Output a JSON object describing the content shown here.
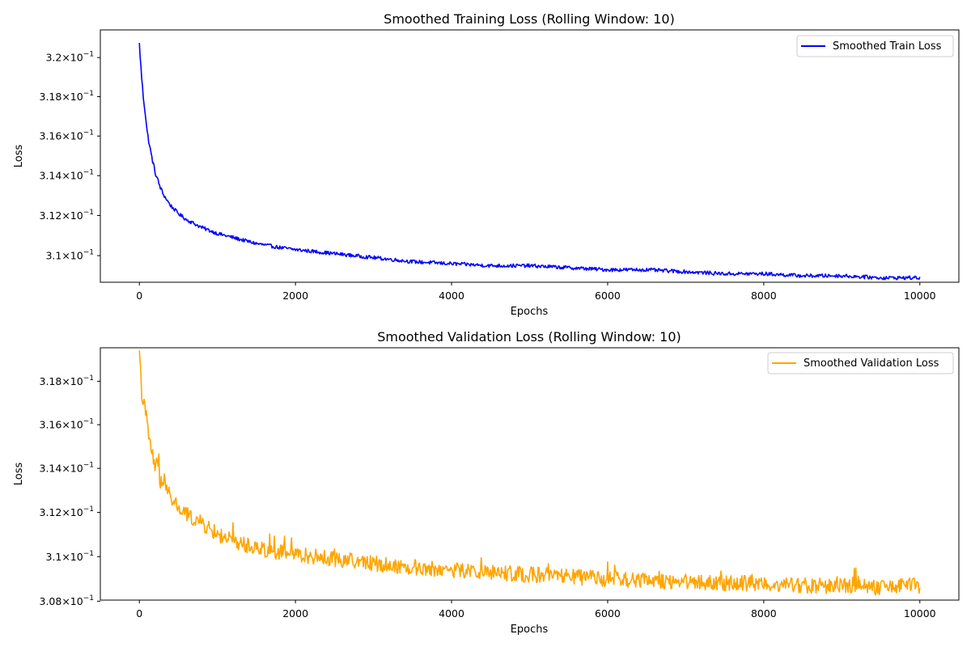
{
  "chart_data": [
    {
      "type": "line",
      "title": "Smoothed Training Loss (Rolling Window: 10)",
      "xlabel": "Epochs",
      "ylabel": "Loss",
      "yscale": "log",
      "xlim": [
        -500,
        10500
      ],
      "ylim": [
        0.30868,
        0.32142
      ],
      "xticks": [
        0,
        2000,
        4000,
        6000,
        8000,
        10000
      ],
      "xtick_labels": [
        "0",
        "2000",
        "4000",
        "6000",
        "8000",
        "10000"
      ],
      "yticks": [
        0.31,
        0.312,
        0.314,
        0.316,
        0.318,
        0.32
      ],
      "ytick_labels": [
        {
          "mantissa": "3.1",
          "base": "10",
          "exp": "−1"
        },
        {
          "mantissa": "3.12",
          "base": "10",
          "exp": "−1"
        },
        {
          "mantissa": "3.14",
          "base": "10",
          "exp": "−1"
        },
        {
          "mantissa": "3.16",
          "base": "10",
          "exp": "−1"
        },
        {
          "mantissa": "3.18",
          "base": "10",
          "exp": "−1"
        },
        {
          "mantissa": "3.2",
          "base": "10",
          "exp": "−1"
        }
      ],
      "legend_position": "upper-right",
      "noise": 9e-05,
      "series": [
        {
          "name": "Smoothed Train Loss",
          "color": "#0000ff",
          "x": [
            0,
            25,
            50,
            75,
            100,
            150,
            200,
            250,
            300,
            400,
            500,
            600,
            700,
            800,
            1000,
            1200,
            1500,
            1800,
            2000,
            2500,
            3000,
            3500,
            4000,
            4500,
            5000,
            5500,
            6000,
            6500,
            7000,
            7500,
            8000,
            8500,
            9000,
            9500,
            10000
          ],
          "y": [
            0.3207,
            0.3192,
            0.318,
            0.3172,
            0.3162,
            0.3151,
            0.3142,
            0.3136,
            0.3131,
            0.3125,
            0.3121,
            0.3118,
            0.3116,
            0.3114,
            0.3111,
            0.3109,
            0.3106,
            0.3104,
            0.3103,
            0.3101,
            0.3099,
            0.3097,
            0.3096,
            0.3095,
            0.3095,
            0.3094,
            0.3093,
            0.3093,
            0.3092,
            0.3091,
            0.3091,
            0.309,
            0.309,
            0.3089,
            0.3089
          ]
        }
      ]
    },
    {
      "type": "line",
      "title": "Smoothed Validation Loss (Rolling Window: 10)",
      "xlabel": "Epochs",
      "ylabel": "Loss",
      "yscale": "log",
      "xlim": [
        -500,
        10500
      ],
      "ylim": [
        0.30805,
        0.31955
      ],
      "xticks": [
        0,
        2000,
        4000,
        6000,
        8000,
        10000
      ],
      "xtick_labels": [
        "0",
        "2000",
        "4000",
        "6000",
        "8000",
        "10000"
      ],
      "yticks": [
        0.308,
        0.31,
        0.312,
        0.314,
        0.316,
        0.318
      ],
      "ytick_labels": [
        {
          "mantissa": "3.08",
          "base": "10",
          "exp": "−1"
        },
        {
          "mantissa": "3.1",
          "base": "10",
          "exp": "−1"
        },
        {
          "mantissa": "3.12",
          "base": "10",
          "exp": "−1"
        },
        {
          "mantissa": "3.14",
          "base": "10",
          "exp": "−1"
        },
        {
          "mantissa": "3.16",
          "base": "10",
          "exp": "−1"
        },
        {
          "mantissa": "3.18",
          "base": "10",
          "exp": "−1"
        }
      ],
      "legend_position": "upper-right",
      "noise": 0.00035,
      "series": [
        {
          "name": "Smoothed Validation Loss",
          "color": "#ffa500",
          "x": [
            0,
            25,
            50,
            75,
            100,
            150,
            200,
            250,
            300,
            400,
            500,
            600,
            700,
            800,
            1000,
            1200,
            1500,
            1800,
            2000,
            2500,
            3000,
            3500,
            4000,
            4500,
            5000,
            5500,
            6000,
            6500,
            7000,
            7500,
            8000,
            8500,
            9000,
            9500,
            10000
          ],
          "y": [
            0.319,
            0.3178,
            0.3172,
            0.3165,
            0.316,
            0.3148,
            0.3142,
            0.3137,
            0.3133,
            0.3127,
            0.3122,
            0.3119,
            0.3117,
            0.3115,
            0.311,
            0.3107,
            0.3104,
            0.3102,
            0.3101,
            0.3099,
            0.3097,
            0.3095,
            0.3094,
            0.3093,
            0.3092,
            0.3091,
            0.309,
            0.3089,
            0.3089,
            0.3088,
            0.3088,
            0.3087,
            0.3087,
            0.3086,
            0.3087
          ]
        }
      ]
    }
  ]
}
